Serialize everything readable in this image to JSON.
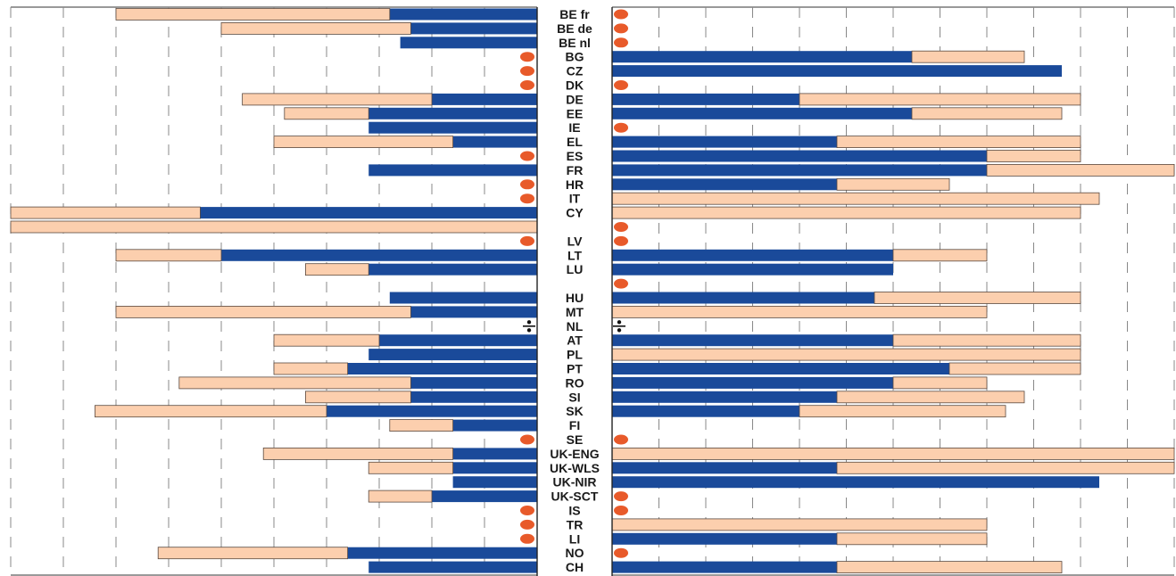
{
  "chart_data": {
    "type": "bar",
    "layout": "back-to-back horizontal stacked bars",
    "colors": {
      "primary": "#1a4a9a",
      "secondary": "#fccfae",
      "marker": "#e85a2a",
      "grid": "#888888"
    },
    "legend_symbols": {
      "orange_oval": "not applicable",
      "split_sign": "data not available"
    },
    "left_panel": {
      "direction": "leftward",
      "xlim": [
        0,
        10
      ],
      "grid": "dashed verticals every 1 unit"
    },
    "right_panel": {
      "direction": "rightward",
      "xlim": [
        0,
        30
      ],
      "grid": "dashed verticals every 2.5 units"
    },
    "categories": [
      "BE fr",
      "BE de",
      "BE nl",
      "BG",
      "CZ",
      "DK",
      "DE",
      "EE",
      "IE",
      "EL",
      "ES",
      "FR",
      "HR",
      "IT",
      "CY",
      "",
      "LV",
      "LT",
      "LU",
      "",
      "HU",
      "MT",
      "NL",
      "AT",
      "PL",
      "PT",
      "RO",
      "SI",
      "SK",
      "FI",
      "SE",
      "UK-ENG",
      "UK-WLS",
      "UK-NIR",
      "UK-SCT",
      "IS",
      "TR",
      "LI",
      "NO",
      "CH"
    ],
    "left": {
      "primary": [
        2.8,
        2.4,
        2.6,
        null,
        null,
        null,
        2.0,
        3.2,
        3.2,
        1.6,
        null,
        3.2,
        null,
        null,
        6.4,
        0,
        null,
        6.0,
        3.2,
        null,
        2.8,
        2.4,
        "na",
        3.0,
        3.2,
        3.6,
        2.4,
        2.4,
        4.0,
        1.6,
        null,
        1.6,
        1.6,
        1.6,
        2.0,
        null,
        null,
        null,
        3.6,
        3.2
      ],
      "secondary": [
        5.2,
        3.6,
        null,
        null,
        null,
        null,
        3.6,
        1.6,
        null,
        3.4,
        null,
        null,
        null,
        null,
        3.6,
        10.0,
        null,
        2.0,
        1.2,
        null,
        null,
        5.6,
        "na",
        2.0,
        null,
        1.4,
        4.4,
        2.0,
        4.4,
        1.2,
        null,
        3.6,
        1.6,
        null,
        1.2,
        null,
        null,
        null,
        3.6,
        null
      ]
    },
    "right": {
      "primary": [
        null,
        null,
        null,
        16,
        24,
        null,
        10,
        16,
        null,
        12,
        20,
        20,
        12,
        null,
        0,
        null,
        null,
        15,
        15,
        null,
        14,
        0,
        "na",
        15,
        0,
        18,
        15,
        12,
        10,
        0,
        null,
        0,
        12,
        26,
        null,
        null,
        0,
        12,
        null,
        12
      ],
      "secondary": [
        null,
        null,
        null,
        6,
        null,
        null,
        15,
        8,
        null,
        13,
        5,
        10,
        6,
        26,
        25,
        null,
        null,
        5,
        null,
        null,
        11,
        20,
        "na",
        10,
        25,
        7,
        5,
        10,
        11,
        null,
        null,
        30,
        18,
        null,
        null,
        null,
        20,
        8,
        null,
        12
      ]
    }
  }
}
